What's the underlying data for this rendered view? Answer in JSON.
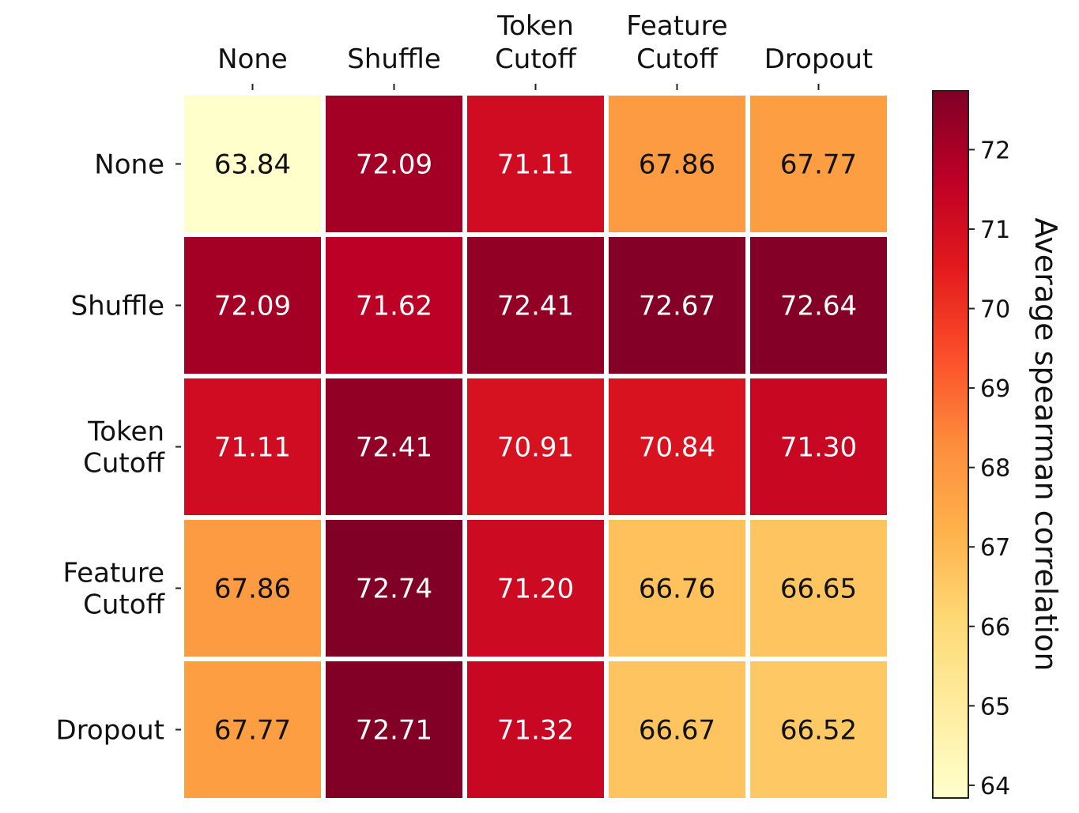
{
  "chart_data": {
    "type": "heatmap",
    "x_labels": [
      [
        "None"
      ],
      [
        "Shuffle"
      ],
      [
        "Token",
        "Cutoff"
      ],
      [
        "Feature",
        "Cutoff"
      ],
      [
        "Dropout"
      ]
    ],
    "y_labels": [
      [
        "None"
      ],
      [
        "Shuffle"
      ],
      [
        "Token",
        "Cutoff"
      ],
      [
        "Feature",
        "Cutoff"
      ],
      [
        "Dropout"
      ]
    ],
    "values": [
      [
        63.84,
        72.09,
        71.11,
        67.86,
        67.77
      ],
      [
        72.09,
        71.62,
        72.41,
        72.67,
        72.64
      ],
      [
        71.11,
        72.41,
        70.91,
        70.84,
        71.3
      ],
      [
        67.86,
        72.74,
        71.2,
        66.76,
        66.65
      ],
      [
        67.77,
        72.71,
        71.32,
        66.67,
        66.52
      ]
    ],
    "value_format_decimals": 2,
    "colormap": "YlOrRd",
    "colorbar": {
      "label": "Average spearman correlation",
      "range": [
        63.84,
        72.74
      ],
      "ticks": [
        64,
        65,
        66,
        67,
        68,
        69,
        70,
        71,
        72
      ]
    },
    "x_axis_position": "top",
    "grid": false,
    "cell_border_color": "#ffffff"
  }
}
